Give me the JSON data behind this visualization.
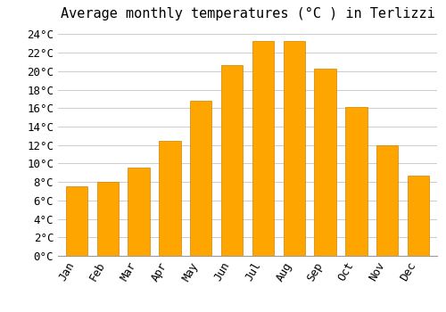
{
  "title": "Average monthly temperatures (°C ) in Terlizzi",
  "months": [
    "Jan",
    "Feb",
    "Mar",
    "Apr",
    "May",
    "Jun",
    "Jul",
    "Aug",
    "Sep",
    "Oct",
    "Nov",
    "Dec"
  ],
  "temperatures": [
    7.5,
    8.0,
    9.6,
    12.5,
    16.8,
    20.7,
    23.3,
    23.3,
    20.3,
    16.1,
    12.0,
    8.7
  ],
  "bar_color": "#FFA500",
  "bar_edge_color": "#CC8400",
  "background_color": "#FFFFFF",
  "plot_bg_color": "#FFFFFF",
  "grid_color": "#CCCCCC",
  "ylim": [
    0,
    25
  ],
  "ytick_vals": [
    0,
    2,
    4,
    6,
    8,
    10,
    12,
    14,
    16,
    18,
    20,
    22,
    24
  ],
  "title_fontsize": 11,
  "tick_fontsize": 9,
  "font_family": "monospace",
  "bar_width": 0.7
}
